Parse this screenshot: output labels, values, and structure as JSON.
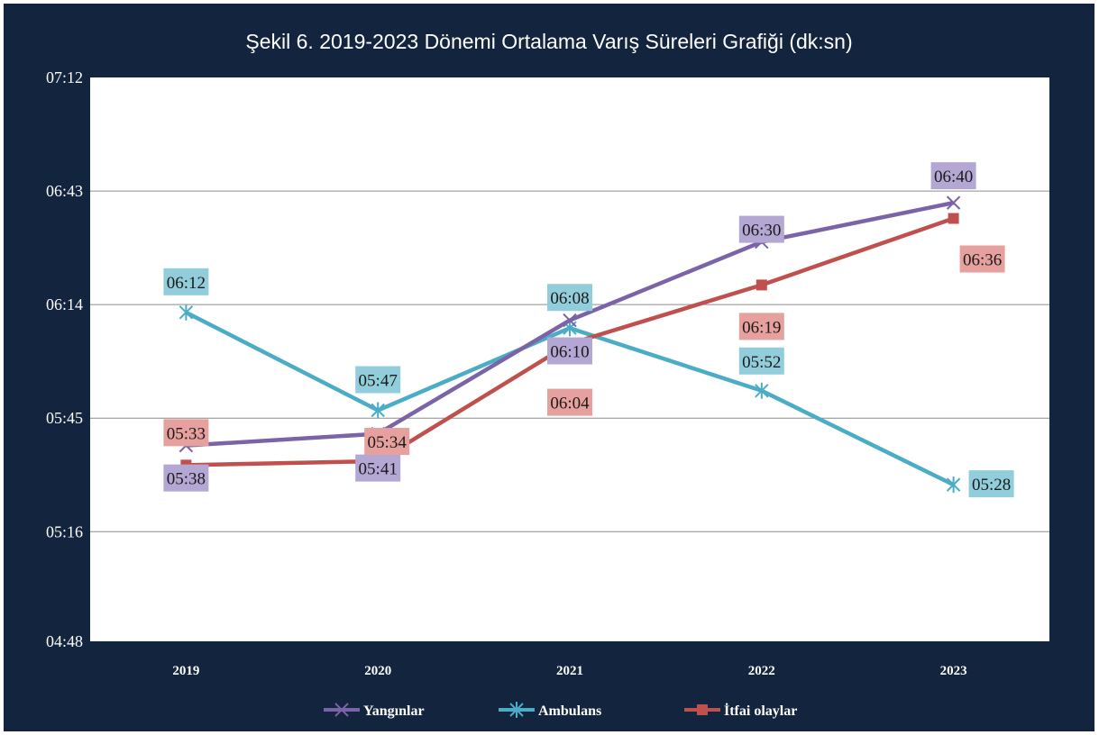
{
  "chart_data": {
    "type": "line",
    "title": "Şekil  6. 2019-2023 Dönemi Ortalama Varış Süreleri Grafiği (dk:sn)",
    "xlabel": "",
    "ylabel": "",
    "categories": [
      "2019",
      "2020",
      "2021",
      "2022",
      "2023"
    ],
    "y_unit": "mm:ss",
    "ylim": [
      "04:48",
      "07:12"
    ],
    "y_ticks": [
      "04:48",
      "05:16",
      "05:45",
      "06:14",
      "06:43",
      "07:12"
    ],
    "grid": true,
    "legend_position": "bottom",
    "series": [
      {
        "name": "Yangınlar",
        "color": "#7b63a8",
        "label_bg": "#b4a7d3",
        "marker": "x",
        "values": [
          "05:38",
          "05:41",
          "06:10",
          "06:30",
          "06:40"
        ],
        "labels": [
          "05:38",
          "05:41",
          "06:10",
          "06:30",
          "06:40"
        ]
      },
      {
        "name": "Ambulans",
        "color": "#4bacc6",
        "label_bg": "#92cddc",
        "marker": "asterisk",
        "values": [
          "06:12",
          "05:47",
          "06:08",
          "05:52",
          "05:28"
        ],
        "labels": [
          "06:12",
          "05:47",
          "06:08",
          "05:52",
          "05:28"
        ]
      },
      {
        "name": "İtfai olaylar",
        "color": "#c0504d",
        "label_bg": "#e6a09d",
        "marker": "square",
        "values": [
          "05:33",
          "05:34",
          "06:04",
          "06:19",
          "06:36"
        ],
        "labels": [
          "05:33",
          "05:34",
          "06:04",
          "06:19",
          "06:36"
        ]
      }
    ]
  }
}
